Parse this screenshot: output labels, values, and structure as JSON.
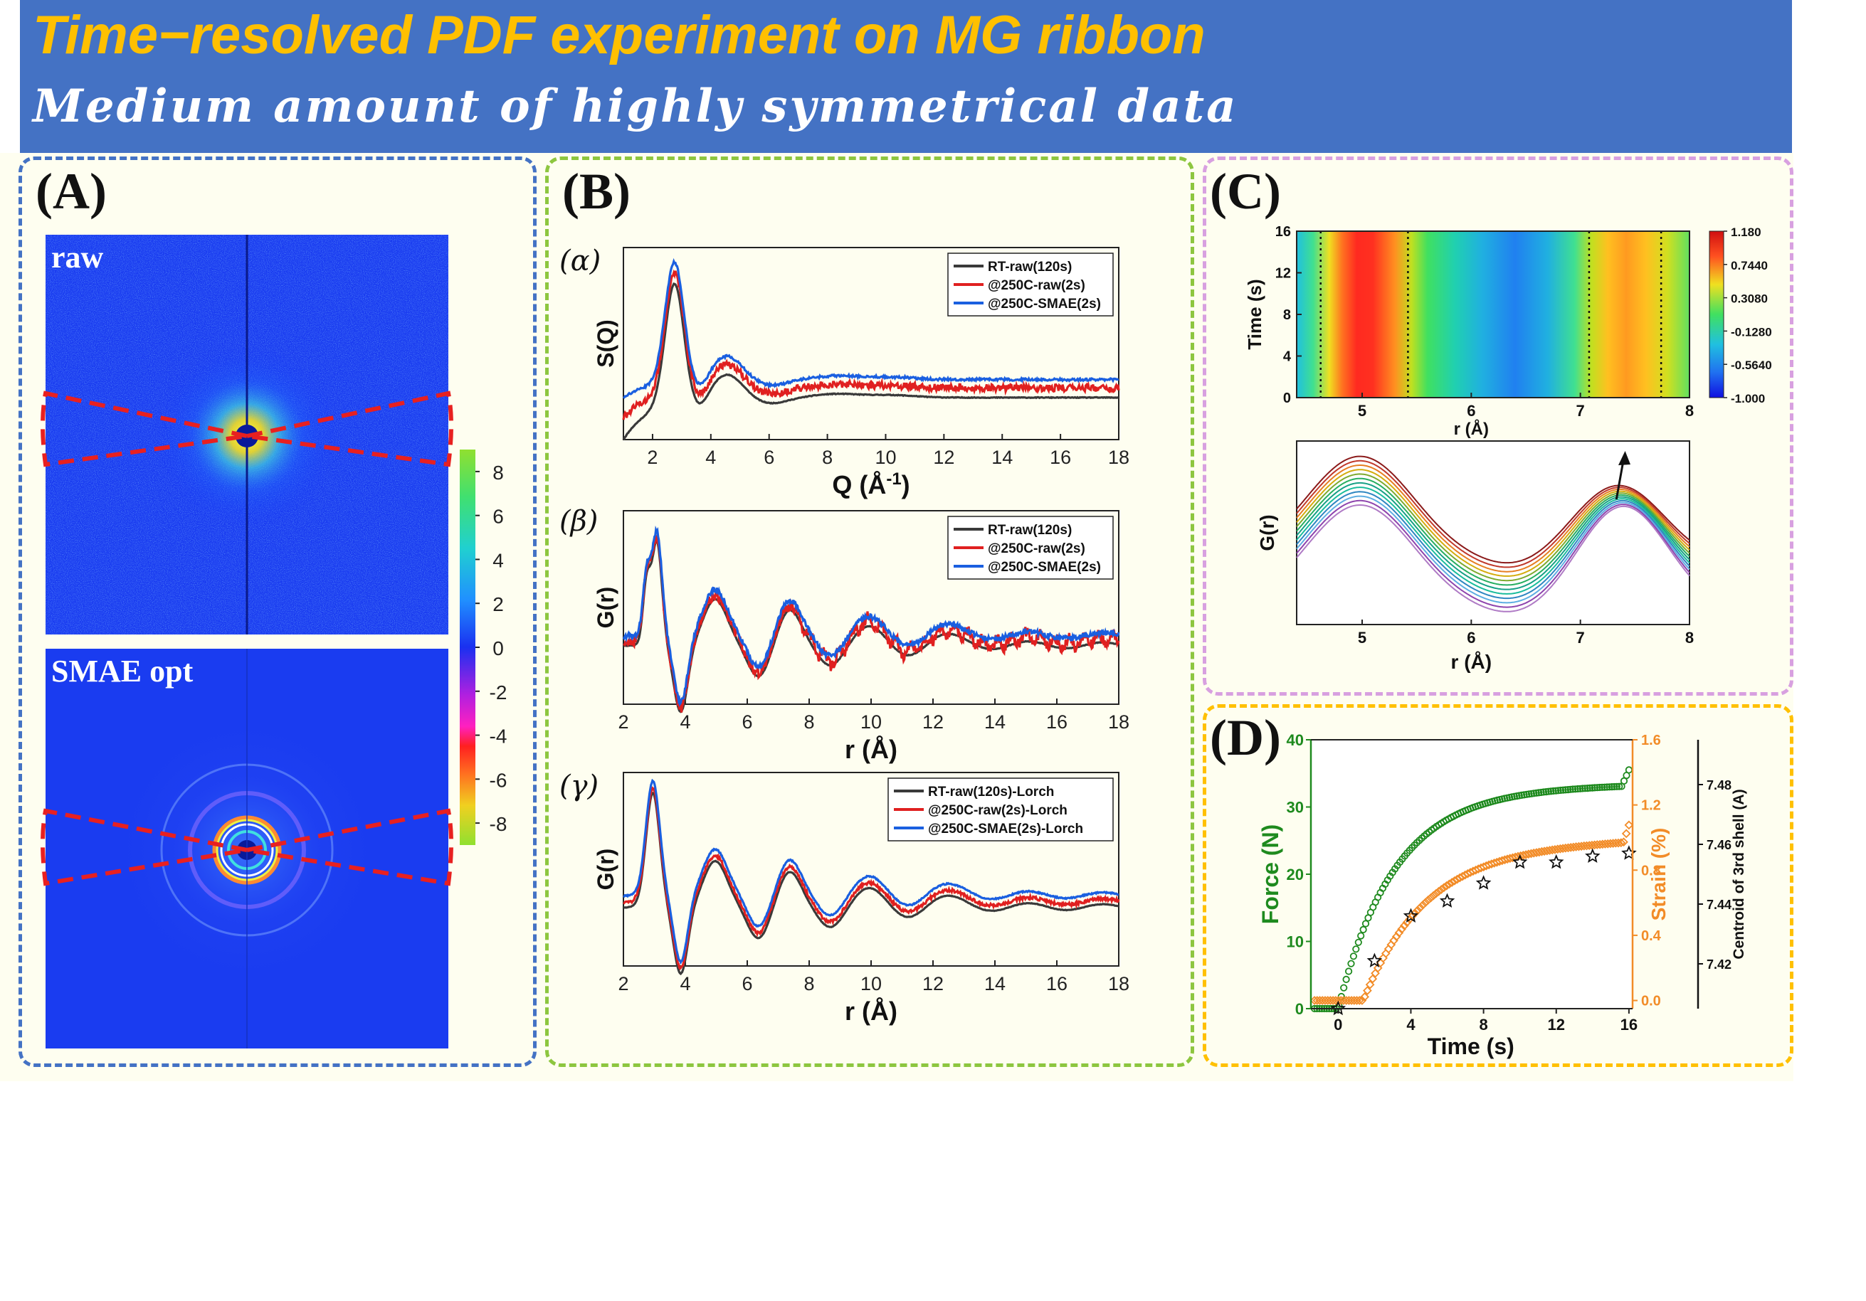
{
  "header": {
    "title": "Time−resolved PDF experiment on MG ribbon",
    "subtitle": "Medium amount of highly symmetrical data"
  },
  "panels": {
    "a": {
      "label": "(A)",
      "img_raw_label": "raw",
      "img_opt_label": "SMAE opt"
    },
    "b": {
      "label": "(B)",
      "alpha": "(α)",
      "beta": "(β)",
      "gamma": "(γ)"
    },
    "c": {
      "label": "(C)"
    },
    "d": {
      "label": "(D)"
    }
  },
  "colors": {
    "header_bg": "#4472c4",
    "title": "#ffc000",
    "subtitle": "#ffffff",
    "series_black": "#3a3a3a",
    "series_red": "#e02020",
    "series_blue": "#1a5fe0",
    "force_green": "#1e8a1e",
    "strain_orange": "#f28c28",
    "panel_a_border": "#4472c4",
    "panel_b_border": "#8dc63f",
    "panel_c_border": "#d8a0e0",
    "panel_d_border": "#ffc000"
  },
  "chart_data": [
    {
      "id": "colorbar_A",
      "type": "heatmap",
      "ticks": [
        8,
        6,
        4,
        2,
        0,
        -2,
        -4,
        -6,
        -8
      ],
      "range": [
        -9,
        9
      ]
    },
    {
      "id": "B_alpha",
      "type": "line",
      "xlabel": "Q (Å",
      "xlabel_sup": "-1",
      "xlabel_tail": ")",
      "ylabel": "S(Q)",
      "xlim": [
        1,
        18
      ],
      "xticks": [
        2,
        4,
        6,
        8,
        10,
        12,
        14,
        16,
        18
      ],
      "ylim": [
        -0.35,
        1.25
      ],
      "peaks": [
        [
          2.75,
          1.0,
          0.32
        ],
        [
          4.55,
          0.2,
          0.55
        ]
      ],
      "baseline": [
        -0.25,
        0.0
      ],
      "offsets": [
        0.0,
        0.08,
        0.15
      ],
      "noise": [
        0.003,
        0.03,
        0.01
      ],
      "series": [
        {
          "name": "RT-raw(120s)",
          "color": "#3a3a3a"
        },
        {
          "name": "@250C-raw(2s)",
          "color": "#e02020"
        },
        {
          "name": "@250C-SMAE(2s)",
          "color": "#1a5fe0"
        }
      ]
    },
    {
      "id": "B_beta",
      "type": "line",
      "xlabel": "r (Å)",
      "ylabel": "G(r)",
      "xlim": [
        2,
        18
      ],
      "xticks": [
        2,
        4,
        6,
        8,
        10,
        12,
        14,
        16,
        18
      ],
      "ylim": [
        -0.55,
        1.25
      ],
      "split_peak": true,
      "offsets": [
        0.0,
        0.04,
        0.09
      ],
      "noise": [
        0.004,
        0.07,
        0.03
      ],
      "series": [
        {
          "name": "RT-raw(120s)",
          "color": "#3a3a3a"
        },
        {
          "name": "@250C-raw(2s)",
          "color": "#e02020"
        },
        {
          "name": "@250C-SMAE(2s)",
          "color": "#1a5fe0"
        }
      ]
    },
    {
      "id": "B_gamma",
      "type": "line",
      "xlabel": "r (Å)",
      "ylabel": "G(r)",
      "xlim": [
        2,
        18
      ],
      "xticks": [
        2,
        4,
        6,
        8,
        10,
        12,
        14,
        16,
        18
      ],
      "ylim": [
        -0.55,
        1.25
      ],
      "split_peak": false,
      "offsets": [
        0.0,
        0.05,
        0.11
      ],
      "noise": [
        0.003,
        0.02,
        0.008
      ],
      "series": [
        {
          "name": "RT-raw(120s)-Lorch",
          "color": "#3a3a3a"
        },
        {
          "name": "@250C-raw(2s)-Lorch",
          "color": "#e02020"
        },
        {
          "name": "@250C-SMAE(2s)-Lorch",
          "color": "#1a5fe0"
        }
      ]
    },
    {
      "id": "C_heatmap",
      "type": "heatmap",
      "xlabel": "r (Å)",
      "ylabel": "Time (s)",
      "xlim": [
        4.4,
        8.0
      ],
      "ylim": [
        0,
        16
      ],
      "xticks": [
        5,
        6,
        7,
        8
      ],
      "yticks": [
        0,
        4,
        8,
        12,
        16
      ],
      "dotted_lines_r": [
        4.62,
        5.42,
        7.08,
        7.74
      ],
      "colorbar_ticks": [
        "1.180",
        "0.7440",
        "0.3080",
        "-0.1280",
        "-0.5640",
        "-1.000"
      ],
      "value_range": [
        -1.0,
        1.18
      ]
    },
    {
      "id": "C_curves",
      "type": "line",
      "xlabel": "r (Å)",
      "ylabel": "G(r)",
      "xlim": [
        4.4,
        8.0
      ],
      "xticks": [
        5,
        6,
        7,
        8
      ],
      "n_curves": 12,
      "colors": [
        "#8b1a1a",
        "#c0392b",
        "#e67e22",
        "#d4ac0d",
        "#7daa2f",
        "#27ae60",
        "#16a085",
        "#1abc9c",
        "#2e86c1",
        "#5dade2",
        "#8e44ad",
        "#af7ac5"
      ]
    },
    {
      "id": "D_force_strain",
      "type": "scatter",
      "xlabel": "Time (s)",
      "ylabel": "Force (N)",
      "y2label": "Strain (%)",
      "y3label": "Centroid of 3rd shell (A)",
      "xlim": [
        -1.5,
        16.2
      ],
      "xticks": [
        0,
        4,
        8,
        12,
        16
      ],
      "ylim": [
        0,
        40
      ],
      "yticks": [
        0,
        10,
        20,
        30,
        40
      ],
      "y2lim": [
        -0.05,
        1.6
      ],
      "y2ticks": [
        "0.0",
        "0.4",
        "0.8",
        "1.2",
        "1.6"
      ],
      "y3lim": [
        7.405,
        7.495
      ],
      "y3ticks": [
        "7.42",
        "7.44",
        "7.46",
        "7.48"
      ],
      "stars": {
        "x": [
          0,
          2,
          4,
          6,
          8,
          10,
          12,
          14,
          16
        ],
        "y": [
          7.405,
          7.421,
          7.436,
          7.441,
          7.447,
          7.454,
          7.454,
          7.456,
          7.457
        ]
      }
    }
  ]
}
